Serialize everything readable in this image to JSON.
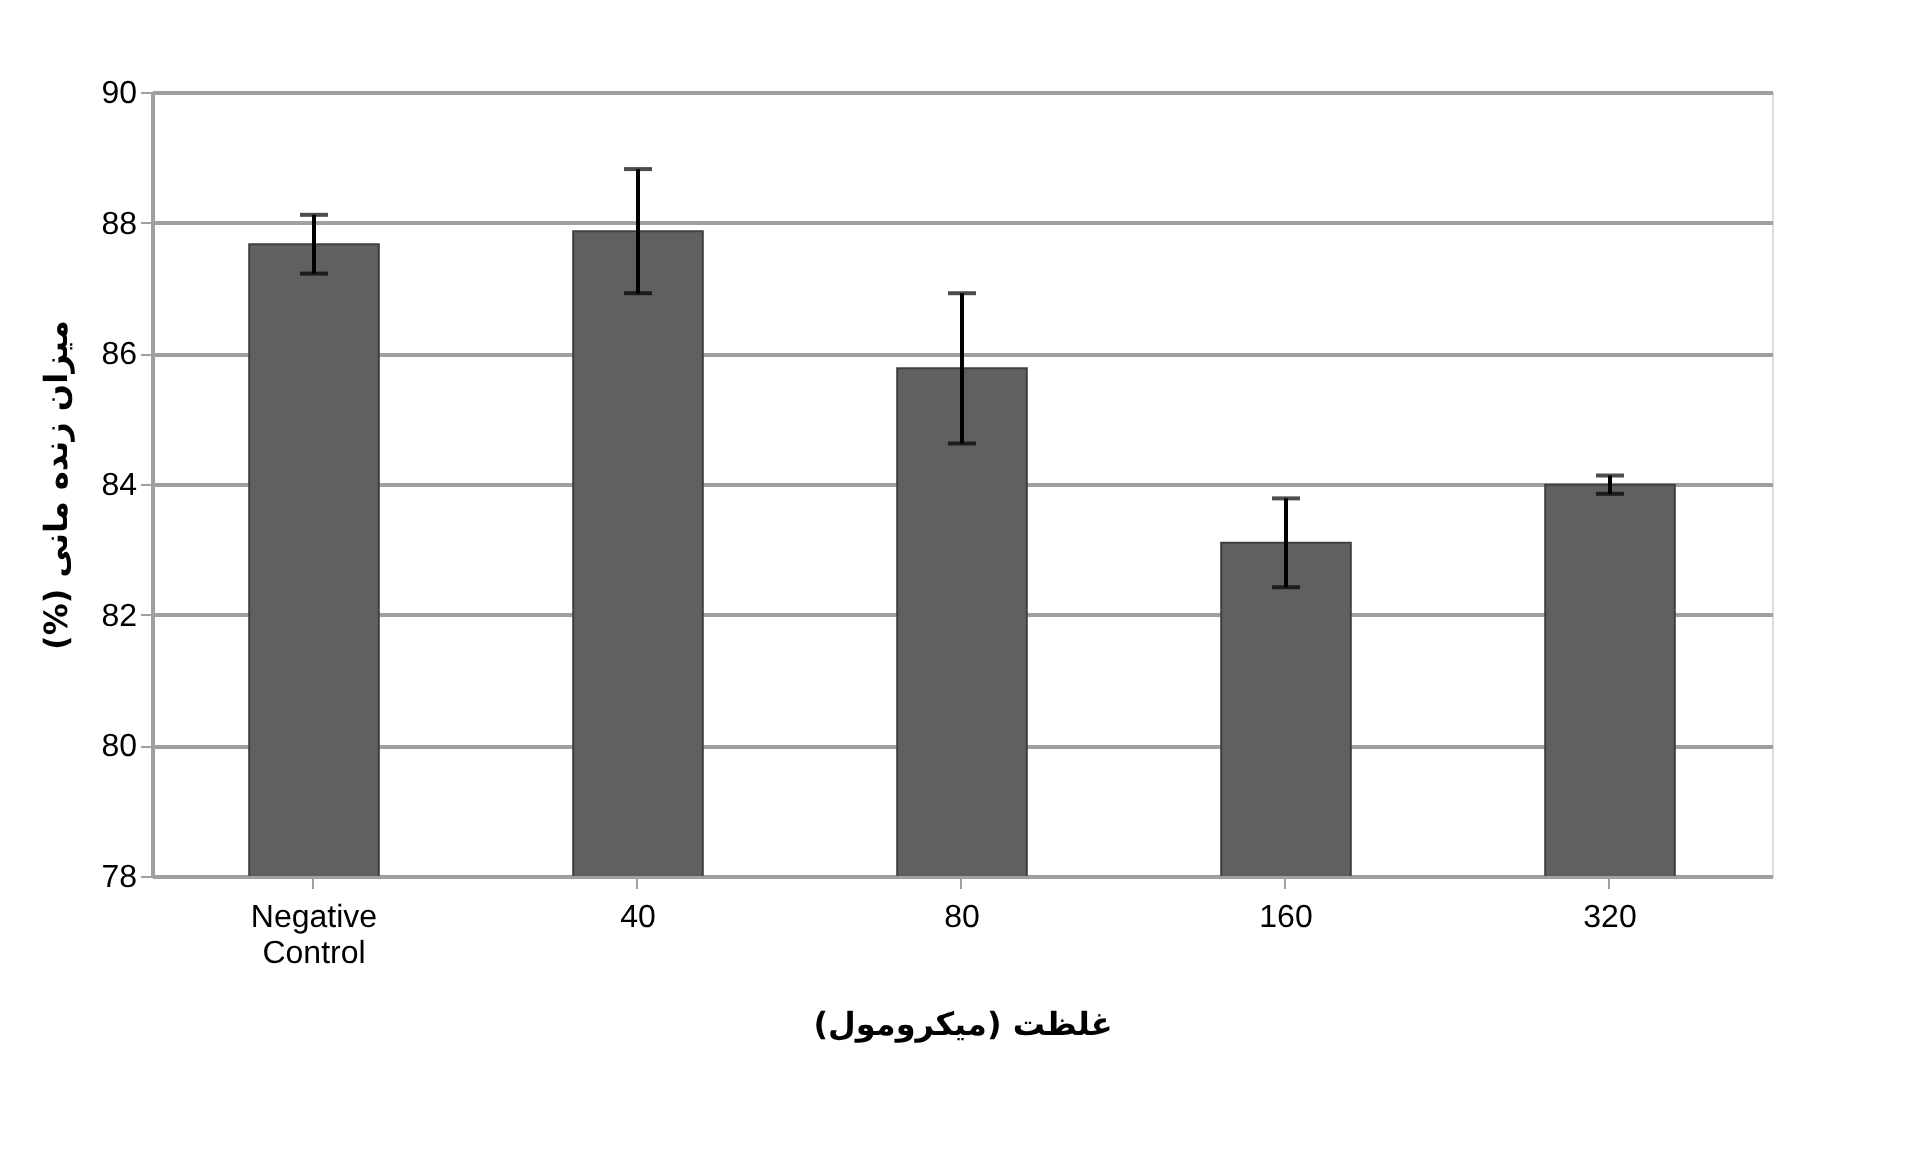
{
  "chart_data": {
    "type": "bar",
    "xlabel": "غلظت (میکرومول)",
    "ylabel": "میزان زنده مانی (%)",
    "categories": [
      "Negative Control",
      "40",
      "80",
      "160",
      "320"
    ],
    "values": [
      87.67,
      87.87,
      85.77,
      83.1,
      83.99
    ],
    "errors": [
      0.45,
      0.95,
      1.15,
      0.68,
      0.14
    ],
    "color": "#606060",
    "ylim": [
      78,
      90
    ],
    "yticks": [
      78,
      80,
      82,
      84,
      86,
      88,
      90
    ],
    "grid": "y"
  }
}
